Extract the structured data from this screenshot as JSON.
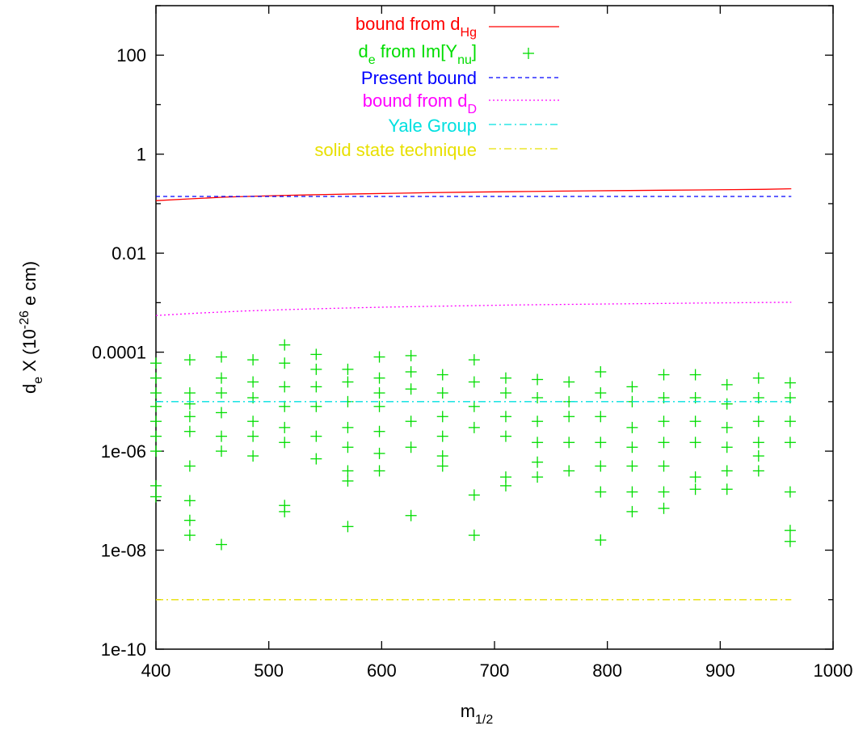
{
  "chart_data": {
    "type": "scatter",
    "title": "",
    "xlabel": {
      "main": "m",
      "sub": "1/2"
    },
    "ylabel": {
      "d": "d",
      "dsub": "e",
      "mid": "  X (10",
      "sup": "-26",
      "end": " e cm)"
    },
    "xlim": [
      400,
      1000
    ],
    "ylim": [
      1e-10,
      1000
    ],
    "yscale": "log",
    "grid": false,
    "legend_position": "top-center",
    "x_ticks": [
      "400",
      "500",
      "600",
      "700",
      "800",
      "900",
      "1000"
    ],
    "y_ticks": [
      "1e-10",
      "1e-08",
      "1e-06",
      "0.0001",
      "0.01",
      "1",
      "100"
    ],
    "series": [
      {
        "key": "dhg",
        "legend": {
          "main": "bound from d",
          "sub": "Hg"
        },
        "color": "#ff0000",
        "style": "solid",
        "x": [
          400,
          430,
          460,
          490,
          520,
          550,
          580,
          610,
          640,
          670,
          700,
          730,
          760,
          790,
          820,
          850,
          880,
          910,
          940,
          963
        ],
        "y": [
          0.115,
          0.125,
          0.135,
          0.142,
          0.148,
          0.153,
          0.158,
          0.162,
          0.166,
          0.17,
          0.173,
          0.176,
          0.179,
          0.182,
          0.184,
          0.187,
          0.189,
          0.192,
          0.195,
          0.2
        ]
      },
      {
        "key": "points",
        "legend": {
          "pre": "d",
          "sub1": "e",
          "mid": " from Im[Y",
          "sub2": "nu",
          "end": "]"
        },
        "color": "#00dd00",
        "style": "points",
        "x": [
          400,
          430,
          458,
          486,
          514,
          542,
          570,
          598,
          626,
          654,
          682,
          710,
          738,
          766,
          794,
          822,
          850,
          878,
          906,
          934,
          962
        ],
        "y_per_x": [
          [
            6e-05,
            3e-05,
            1.5e-05,
            8e-06,
            4e-06,
            2e-06,
            1e-06,
            2e-07,
            1.2e-07
          ],
          [
            7e-05,
            1.5e-05,
            9e-06,
            5e-06,
            2.5e-06,
            5e-07,
            1e-07,
            4e-08,
            2e-08
          ],
          [
            8e-05,
            3e-05,
            1.5e-05,
            6e-06,
            2e-06,
            1e-06,
            1.3e-08
          ],
          [
            7e-05,
            2.5e-05,
            1.2e-05,
            4e-06,
            2e-06,
            8e-07
          ],
          [
            0.00014,
            6e-05,
            2e-05,
            8e-06,
            3e-06,
            1.5e-06,
            8e-08,
            6e-08
          ],
          [
            9e-05,
            4.5e-05,
            2e-05,
            8e-06,
            2e-06,
            7e-07
          ],
          [
            4.5e-05,
            2.5e-05,
            1e-05,
            3e-06,
            1.2e-06,
            4e-07,
            2.5e-07,
            3e-08
          ],
          [
            8e-05,
            3e-05,
            1.5e-05,
            8e-06,
            2.5e-06,
            9e-07,
            4e-07
          ],
          [
            8.5e-05,
            4e-05,
            1.8e-05,
            4e-06,
            1.2e-06,
            5e-08
          ],
          [
            3.5e-05,
            1.5e-05,
            5e-06,
            2e-06,
            8e-07,
            5e-07
          ],
          [
            7e-05,
            2.5e-05,
            8e-06,
            3e-06,
            1.3e-07,
            2e-08
          ],
          [
            3e-05,
            1.5e-05,
            5e-06,
            2e-06,
            3e-07,
            2e-07
          ],
          [
            2.8e-05,
            1.2e-05,
            4e-06,
            1.5e-06,
            6e-07,
            3e-07
          ],
          [
            2.5e-05,
            1e-05,
            5e-06,
            1.5e-06,
            4e-07
          ],
          [
            4e-05,
            1.5e-05,
            5e-06,
            1.5e-06,
            5e-07,
            1.5e-07,
            1.6e-08
          ],
          [
            2e-05,
            1e-05,
            3e-06,
            1.2e-06,
            5e-07,
            1.5e-07,
            6e-08
          ],
          [
            3.5e-05,
            1.2e-05,
            4e-06,
            1.5e-06,
            5e-07,
            1.5e-07,
            7e-08
          ],
          [
            3.5e-05,
            1.2e-05,
            4e-06,
            1.5e-06,
            3e-07,
            1.7e-07
          ],
          [
            2.2e-05,
            9e-06,
            3e-06,
            1.2e-06,
            4e-07,
            1.7e-07
          ],
          [
            3e-05,
            1.2e-05,
            4e-06,
            1.5e-06,
            8e-07,
            4e-07
          ],
          [
            2.4e-05,
            1.2e-05,
            4e-06,
            1.5e-06,
            1.5e-07,
            2.5e-08,
            1.5e-08
          ]
        ]
      },
      {
        "key": "present",
        "legend": {
          "main": "Present bound"
        },
        "color": "#0000ff",
        "style": "dashed",
        "x": [
          400,
          963
        ],
        "y": [
          0.14,
          0.14
        ]
      },
      {
        "key": "dd",
        "legend": {
          "main": "bound from d",
          "sub": "D"
        },
        "color": "#ff00ff",
        "style": "dotted",
        "x": [
          400,
          440,
          480,
          520,
          560,
          600,
          640,
          680,
          720,
          760,
          800,
          840,
          880,
          920,
          963
        ],
        "y": [
          0.00055,
          0.00062,
          0.00068,
          0.00073,
          0.00077,
          0.00081,
          0.00084,
          0.00087,
          0.0009,
          0.00092,
          0.00094,
          0.00096,
          0.00098,
          0.001,
          0.00102
        ]
      },
      {
        "key": "yale",
        "legend": {
          "main": "Yale Group"
        },
        "color": "#00e0e0",
        "style": "dashdot",
        "x": [
          400,
          963
        ],
        "y": [
          1e-05,
          1e-05
        ]
      },
      {
        "key": "solid",
        "legend": {
          "main": "solid state technique"
        },
        "color": "#e8e000",
        "style": "dashdot",
        "x": [
          400,
          963
        ],
        "y": [
          1e-09,
          1e-09
        ]
      }
    ]
  }
}
